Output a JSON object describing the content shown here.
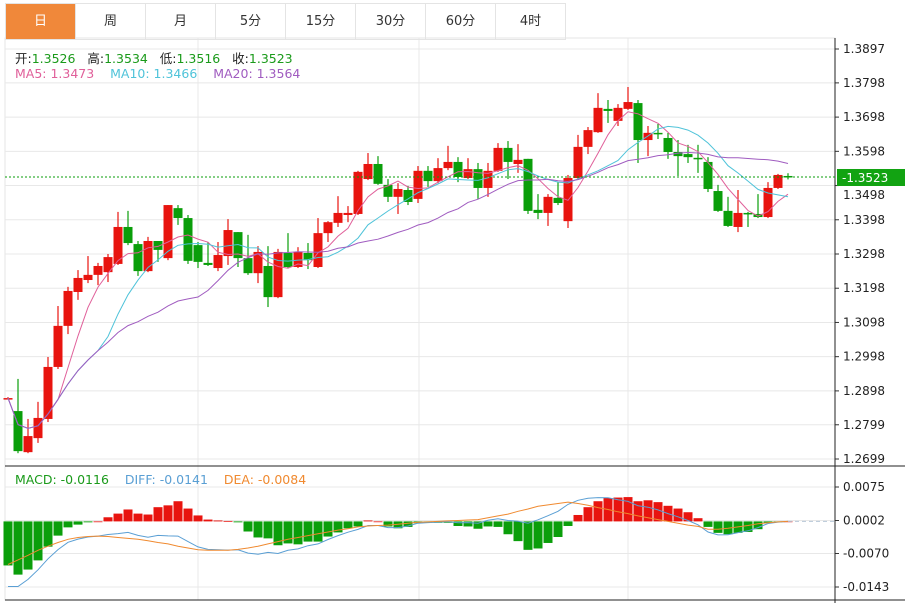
{
  "tabs": [
    {
      "label": "日",
      "active": true
    },
    {
      "label": "周",
      "active": false
    },
    {
      "label": "月",
      "active": false
    },
    {
      "label": "5分",
      "active": false
    },
    {
      "label": "15分",
      "active": false
    },
    {
      "label": "30分",
      "active": false
    },
    {
      "label": "60分",
      "active": false
    },
    {
      "label": "4时",
      "active": false
    }
  ],
  "ohlc_header": {
    "open_label": "开:",
    "open": "1.3526",
    "high_label": "高:",
    "high": "1.3534",
    "low_label": "低:",
    "low": "1.3516",
    "close_label": "收:",
    "close": "1.3523"
  },
  "ma_header": {
    "ma5": "MA5: 1.3473",
    "ma10": "MA10: 1.3466",
    "ma20": "MA20: 1.3564"
  },
  "macd_header": {
    "macd": "MACD: -0.0116",
    "diff": "DIFF: -0.0141",
    "dea": "DEA: -0.0084"
  },
  "colors": {
    "up": "#e8140f",
    "down": "#0a9e0a",
    "accent_tab": "#f0883a",
    "ma5": "#e0609a",
    "ma10": "#4fc3d9",
    "ma20": "#a05cc0",
    "diff": "#5a9fd4",
    "dea": "#f08a30",
    "last_price_bg": "#12a312"
  },
  "chart_data": [
    {
      "type": "candlestick",
      "title": "",
      "price_axis": {
        "ticks": [
          "1.3897",
          "1.3798",
          "1.3698",
          "1.3598",
          "1.3498",
          "1.3398",
          "1.3298",
          "1.3198",
          "1.3098",
          "1.2998",
          "1.2898",
          "1.2799",
          "1.2699"
        ],
        "ylim": [
          1.2699,
          1.3897
        ],
        "position": "right"
      },
      "last_price": "1.3523",
      "moving_averages": [
        {
          "name": "MA5",
          "period": 5
        },
        {
          "name": "MA10",
          "period": 10
        },
        {
          "name": "MA20",
          "period": 20
        }
      ],
      "grid": true,
      "candles_ohlc": [
        [
          1.2877,
          1.288,
          1.2874,
          1.2877
        ],
        [
          1.2839,
          1.2933,
          1.2716,
          1.2722
        ],
        [
          1.2719,
          1.2816,
          1.2716,
          1.2766
        ],
        [
          1.276,
          1.2866,
          1.2746,
          1.2819
        ],
        [
          1.2816,
          1.2997,
          1.2807,
          1.2968
        ],
        [
          1.2968,
          1.3146,
          1.2962,
          1.3088
        ],
        [
          1.3088,
          1.3202,
          1.3064,
          1.319
        ],
        [
          1.3187,
          1.3251,
          1.3164,
          1.3228
        ],
        [
          1.3222,
          1.3292,
          1.3213,
          1.3237
        ],
        [
          1.3237,
          1.3272,
          1.3207,
          1.3263
        ],
        [
          1.3245,
          1.3298,
          1.3216,
          1.3289
        ],
        [
          1.3269,
          1.3421,
          1.3266,
          1.3377
        ],
        [
          1.3377,
          1.3424,
          1.3324,
          1.333
        ],
        [
          1.3327,
          1.3336,
          1.3234,
          1.3248
        ],
        [
          1.3248,
          1.3348,
          1.3245,
          1.3336
        ],
        [
          1.3336,
          1.3336,
          1.3275,
          1.331
        ],
        [
          1.3286,
          1.3441,
          1.328,
          1.3441
        ],
        [
          1.3432,
          1.3441,
          1.3383,
          1.3403
        ],
        [
          1.3403,
          1.3412,
          1.3269,
          1.3278
        ],
        [
          1.3324,
          1.3333,
          1.3257,
          1.3275
        ],
        [
          1.3272,
          1.3333,
          1.3263,
          1.3266
        ],
        [
          1.3257,
          1.3333,
          1.3248,
          1.3295
        ],
        [
          1.3292,
          1.34,
          1.3266,
          1.3368
        ],
        [
          1.3362,
          1.3362,
          1.326,
          1.3286
        ],
        [
          1.3286,
          1.3354,
          1.3237,
          1.3242
        ],
        [
          1.3242,
          1.3321,
          1.3213,
          1.3304
        ],
        [
          1.3263,
          1.3321,
          1.3143,
          1.3172
        ],
        [
          1.3172,
          1.3313,
          1.3169,
          1.3304
        ],
        [
          1.3301,
          1.3359,
          1.3257,
          1.326
        ],
        [
          1.326,
          1.3318,
          1.3257,
          1.3304
        ],
        [
          1.3301,
          1.333,
          1.3254,
          1.328
        ],
        [
          1.326,
          1.3403,
          1.3257,
          1.3359
        ],
        [
          1.3359,
          1.3394,
          1.3333,
          1.3391
        ],
        [
          1.3389,
          1.3467,
          1.3377,
          1.3418
        ],
        [
          1.3412,
          1.3438,
          1.3391,
          1.3418
        ],
        [
          1.3415,
          1.3541,
          1.3412,
          1.3538
        ],
        [
          1.3517,
          1.3593,
          1.3514,
          1.3561
        ],
        [
          1.3561,
          1.3584,
          1.35,
          1.3503
        ],
        [
          1.35,
          1.3517,
          1.345,
          1.3465
        ],
        [
          1.3465,
          1.3505,
          1.3415,
          1.3488
        ],
        [
          1.3485,
          1.3497,
          1.3441,
          1.345
        ],
        [
          1.3459,
          1.3555,
          1.3447,
          1.3541
        ],
        [
          1.3541,
          1.3555,
          1.3494,
          1.3511
        ],
        [
          1.3511,
          1.3578,
          1.3505,
          1.3549
        ],
        [
          1.3549,
          1.3614,
          1.3543,
          1.3567
        ],
        [
          1.3567,
          1.3581,
          1.3508,
          1.3523
        ],
        [
          1.352,
          1.3578,
          1.3517,
          1.3546
        ],
        [
          1.3546,
          1.3564,
          1.3459,
          1.3491
        ],
        [
          1.3491,
          1.3564,
          1.3465,
          1.3541
        ],
        [
          1.3541,
          1.3622,
          1.3538,
          1.3608
        ],
        [
          1.3608,
          1.3628,
          1.3517,
          1.3567
        ],
        [
          1.3561,
          1.3619,
          1.3535,
          1.3573
        ],
        [
          1.3576,
          1.3576,
          1.3415,
          1.3424
        ],
        [
          1.3427,
          1.3473,
          1.34,
          1.3418
        ],
        [
          1.3418,
          1.3473,
          1.338,
          1.3465
        ],
        [
          1.3462,
          1.3508,
          1.3441,
          1.3447
        ],
        [
          1.3394,
          1.3529,
          1.3374,
          1.352
        ],
        [
          1.352,
          1.3646,
          1.3517,
          1.3611
        ],
        [
          1.3611,
          1.3669,
          1.359,
          1.366
        ],
        [
          1.3654,
          1.3768,
          1.3652,
          1.3725
        ],
        [
          1.3722,
          1.3748,
          1.3681,
          1.3716
        ],
        [
          1.3687,
          1.3736,
          1.3672,
          1.3725
        ],
        [
          1.3722,
          1.3786,
          1.3719,
          1.3742
        ],
        [
          1.3739,
          1.3748,
          1.3564,
          1.3631
        ],
        [
          1.3631,
          1.3672,
          1.3584,
          1.3652
        ],
        [
          1.3652,
          1.3678,
          1.3634,
          1.3649
        ],
        [
          1.3637,
          1.3652,
          1.3576,
          1.3596
        ],
        [
          1.3596,
          1.3631,
          1.3526,
          1.3584
        ],
        [
          1.359,
          1.3617,
          1.3564,
          1.3581
        ],
        [
          1.3579,
          1.3617,
          1.3535,
          1.3576
        ],
        [
          1.3567,
          1.3581,
          1.3479,
          1.3488
        ],
        [
          1.3482,
          1.35,
          1.3421,
          1.3424
        ],
        [
          1.3424,
          1.3465,
          1.3377,
          1.338
        ],
        [
          1.3377,
          1.3485,
          1.3362,
          1.3418
        ],
        [
          1.3418,
          1.3421,
          1.3377,
          1.3415
        ],
        [
          1.3415,
          1.3473,
          1.3403,
          1.3406
        ],
        [
          1.3406,
          1.3508,
          1.3403,
          1.3491
        ],
        [
          1.3491,
          1.3532,
          1.3488,
          1.3529
        ],
        [
          1.3526,
          1.3534,
          1.3516,
          1.3523
        ]
      ]
    },
    {
      "type": "bar",
      "title": "MACD",
      "axis": {
        "ticks": [
          "0.0075",
          "0.0002",
          "-0.0070",
          "-0.0143"
        ],
        "ylim": [
          -0.0143,
          0.0075
        ],
        "position": "right"
      },
      "macd_hist": [
        -0.0096,
        -0.0116,
        -0.0105,
        -0.0085,
        -0.0055,
        -0.0031,
        -0.0013,
        -0.0007,
        -0.0002,
        0.0,
        0.0009,
        0.0017,
        0.0026,
        0.0017,
        0.0015,
        0.0031,
        0.0035,
        0.0044,
        0.0028,
        0.0013,
        0.0004,
        0.0002,
        0.0001,
        -0.0002,
        -0.0022,
        -0.0035,
        -0.0037,
        -0.0052,
        -0.0048,
        -0.005,
        -0.0044,
        -0.0044,
        -0.0033,
        -0.0024,
        -0.0015,
        -0.0011,
        0.0002,
        0.0,
        -0.0011,
        -0.0015,
        -0.0012,
        -0.0004,
        -0.0003,
        -0.0003,
        -0.0003,
        -0.001,
        -0.0011,
        -0.0016,
        -0.0011,
        -0.0012,
        -0.0028,
        -0.0043,
        -0.0062,
        -0.0059,
        -0.0047,
        -0.0034,
        -0.001,
        0.0014,
        0.0031,
        0.0044,
        0.0051,
        0.0052,
        0.0053,
        0.0044,
        0.0046,
        0.0042,
        0.0034,
        0.0028,
        0.002,
        0.0007,
        -0.0012,
        -0.0025,
        -0.0028,
        -0.0025,
        -0.0023,
        -0.0017,
        -0.0003,
        -0.0001,
        0.0
      ],
      "dea": [
        -0.0094,
        -0.0084,
        -0.0074,
        -0.0063,
        -0.0054,
        -0.0046,
        -0.0039,
        -0.0035,
        -0.0033,
        -0.0032,
        -0.0033,
        -0.0035,
        -0.0037,
        -0.0039,
        -0.0042,
        -0.0046,
        -0.0049,
        -0.0054,
        -0.0058,
        -0.0062,
        -0.0063,
        -0.0063,
        -0.0063,
        -0.0061,
        -0.0058,
        -0.0054,
        -0.0049,
        -0.0044,
        -0.0039,
        -0.0035,
        -0.0031,
        -0.0027,
        -0.0023,
        -0.0019,
        -0.0016,
        -0.0012,
        -0.001,
        -0.0009,
        -0.0008,
        -0.0006,
        -0.0004,
        -0.0002,
        -0.0001,
        0.0,
        0.0001,
        0.0002,
        0.0003,
        0.0004,
        0.0008,
        0.0012,
        0.0016,
        0.0022,
        0.0027,
        0.0033,
        0.0036,
        0.0039,
        0.0042,
        0.0039,
        0.0035,
        0.003,
        0.0026,
        0.0021,
        0.0017,
        0.0012,
        0.0008,
        0.0004,
        0.0,
        -0.0004,
        -0.0008,
        -0.0011,
        -0.0017,
        -0.0017,
        -0.0015,
        -0.0012,
        -0.0009,
        -0.0005,
        -0.0003,
        -0.0001,
        0.0
      ]
    }
  ]
}
